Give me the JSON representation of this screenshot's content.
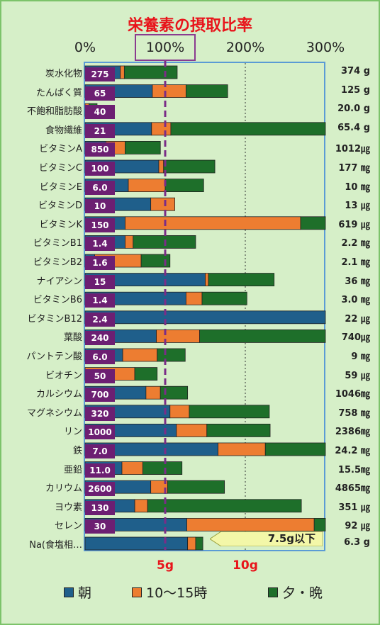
{
  "title": "栄養素の摂取比率",
  "colors": {
    "morning": "#1f5f8b",
    "midday": "#ed7d31",
    "evening": "#1e6f2a",
    "badge": "#6c1f72",
    "title": "#e8141b",
    "reference_line": "#7b2d87"
  },
  "legend": [
    {
      "label": "朝",
      "color": "#1f5f8b"
    },
    {
      "label": "10〜15時",
      "color": "#ed7d31"
    },
    {
      "label": "夕・晩",
      "color": "#1e6f2a"
    }
  ],
  "salt_axis": {
    "ticks": [
      "5g",
      "10g"
    ],
    "tick_values": [
      5,
      10
    ],
    "limit_label": "7.5g以下",
    "limit_value": 7.5
  },
  "chart_data": {
    "type": "bar",
    "stacked": true,
    "orientation": "horizontal",
    "x_ticks": [
      "0%",
      "100%",
      "200%",
      "300%"
    ],
    "x_tick_values": [
      0,
      100,
      200,
      300
    ],
    "xlim": [
      0,
      300
    ],
    "reference_line": 100,
    "series_names": [
      "朝",
      "10〜15時",
      "夕・晩"
    ],
    "rows": [
      {
        "name": "炭水化物",
        "target": "275",
        "intake": "374 g",
        "values": [
          44,
          5,
          66
        ]
      },
      {
        "name": "たんぱく質",
        "target": "65",
        "intake": "125 g",
        "values": [
          84,
          42,
          52
        ]
      },
      {
        "name": "不飽和脂肪酸",
        "target": "40",
        "intake": "20.0 g",
        "values": [
          0,
          5,
          10
        ]
      },
      {
        "name": "食物繊維",
        "target": "21",
        "intake": "65.4 g",
        "values": [
          83,
          24,
          193
        ]
      },
      {
        "name": "ビタミンA",
        "target": "850",
        "intake": "1012㎍",
        "values": [
          26,
          24,
          44
        ]
      },
      {
        "name": "ビタミンC",
        "target": "100",
        "intake": "177 ㎎",
        "values": [
          92,
          6,
          64
        ]
      },
      {
        "name": "ビタミンE",
        "target": "6.0",
        "intake": "10 ㎎",
        "values": [
          54,
          46,
          48
        ]
      },
      {
        "name": "ビタミンD",
        "target": "10",
        "intake": "13 ㎍",
        "values": [
          82,
          30,
          0
        ]
      },
      {
        "name": "ビタミンK",
        "target": "150",
        "intake": "619 ㎍",
        "values": [
          50,
          219,
          31
        ]
      },
      {
        "name": "ビタミンB1",
        "target": "1.4",
        "intake": "2.2 ㎎",
        "values": [
          50,
          10,
          78
        ]
      },
      {
        "name": "ビタミンB2",
        "target": "1.6",
        "intake": "2.1 ㎎",
        "values": [
          12,
          58,
          36
        ]
      },
      {
        "name": "ナイアシン",
        "target": "15",
        "intake": "36 ㎎",
        "values": [
          150,
          4,
          82
        ]
      },
      {
        "name": "ビタミンB6",
        "target": "1.4",
        "intake": "3.0 ㎎",
        "values": [
          126,
          20,
          56
        ]
      },
      {
        "name": "ビタミンB12",
        "target": "2.4",
        "intake": "22 ㎍",
        "values": [
          300,
          0,
          0
        ]
      },
      {
        "name": "葉酸",
        "target": "240",
        "intake": "740㎍",
        "values": [
          89,
          54,
          157
        ]
      },
      {
        "name": "パントテン酸",
        "target": "6.0",
        "intake": "9 ㎎",
        "values": [
          47,
          43,
          35
        ]
      },
      {
        "name": "ビオチン",
        "target": "50",
        "intake": "59 ㎍",
        "values": [
          0,
          62,
          28
        ]
      },
      {
        "name": "カルシウム",
        "target": "700",
        "intake": "1046㎎",
        "values": [
          76,
          18,
          34
        ]
      },
      {
        "name": "マグネシウム",
        "target": "320",
        "intake": "758 ㎎",
        "values": [
          106,
          24,
          100
        ]
      },
      {
        "name": "リン",
        "target": "1000",
        "intake": "2386㎎",
        "values": [
          114,
          38,
          79
        ]
      },
      {
        "name": "鉄",
        "target": "7.0",
        "intake": "24.2 ㎎",
        "values": [
          166,
          59,
          75
        ]
      },
      {
        "name": "亜鉛",
        "target": "11.0",
        "intake": "15.5㎎",
        "values": [
          46,
          26,
          49
        ]
      },
      {
        "name": "カリウム",
        "target": "2600",
        "intake": "4865㎎",
        "values": [
          82,
          21,
          71
        ]
      },
      {
        "name": "ヨウ素",
        "target": "130",
        "intake": "351 ㎍",
        "values": [
          62,
          16,
          192
        ]
      },
      {
        "name": "セレン",
        "target": "30",
        "intake": "92 ㎍",
        "values": [
          127,
          159,
          18
        ]
      },
      {
        "name": "Na(食塩相…",
        "target": "",
        "intake": "6.3 g",
        "values": [
          128,
          10,
          9
        ]
      }
    ]
  }
}
